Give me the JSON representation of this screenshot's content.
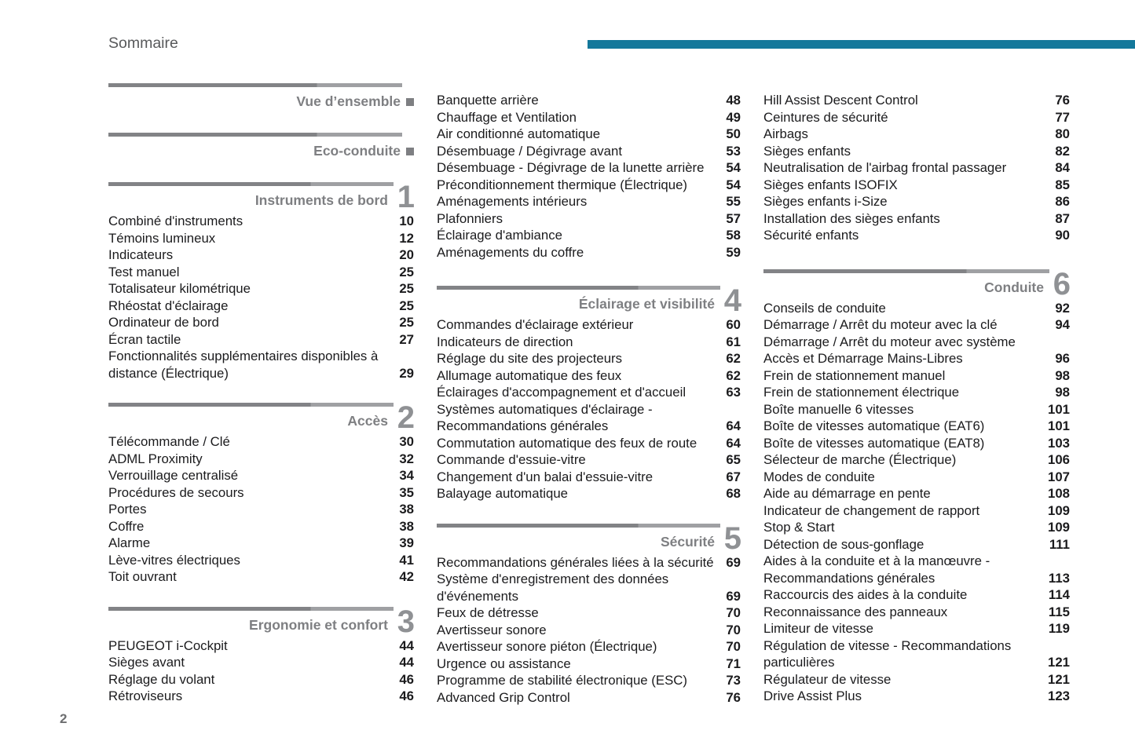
{
  "page": {
    "title": "Sommaire",
    "page_number": "2",
    "accent_color": "#14789b"
  },
  "columns": [
    {
      "blocks": [
        {
          "type": "section",
          "title": "Vue d’ensemble",
          "marker": "square",
          "entries": []
        },
        {
          "type": "section",
          "title": "Eco-conduite",
          "marker": "square",
          "entries": []
        },
        {
          "type": "section",
          "title": "Instruments de bord",
          "marker": "1",
          "entries": [
            {
              "label": "Combiné d'instruments",
              "page": "10"
            },
            {
              "label": "Témoins lumineux",
              "page": "12"
            },
            {
              "label": "Indicateurs",
              "page": "20"
            },
            {
              "label": "Test manuel",
              "page": "25"
            },
            {
              "label": "Totalisateur kilométrique",
              "page": "25"
            },
            {
              "label": "Rhéostat d'éclairage",
              "page": "25"
            },
            {
              "label": "Ordinateur de bord",
              "page": "25"
            },
            {
              "label": "Écran tactile",
              "page": "27"
            },
            {
              "label": "Fonctionnalités supplémentaires disponibles à distance (Électrique)",
              "page": "29"
            }
          ]
        },
        {
          "type": "section",
          "title": "Accès",
          "marker": "2",
          "entries": [
            {
              "label": "Télécommande / Clé",
              "page": "30"
            },
            {
              "label": "ADML Proximity",
              "page": "32"
            },
            {
              "label": "Verrouillage centralisé",
              "page": "34"
            },
            {
              "label": "Procédures de secours",
              "page": "35"
            },
            {
              "label": "Portes",
              "page": "38"
            },
            {
              "label": "Coffre",
              "page": "38"
            },
            {
              "label": "Alarme",
              "page": "39"
            },
            {
              "label": "Lève-vitres électriques",
              "page": "41"
            },
            {
              "label": "Toit ouvrant",
              "page": "42"
            }
          ]
        },
        {
          "type": "section",
          "title": "Ergonomie et confort",
          "marker": "3",
          "entries": [
            {
              "label": "PEUGEOT i-Cockpit",
              "page": "44"
            },
            {
              "label": "Sièges avant",
              "page": "44"
            },
            {
              "label": "Réglage du volant",
              "page": "46"
            },
            {
              "label": "Rétroviseurs",
              "page": "46"
            }
          ]
        }
      ]
    },
    {
      "blocks": [
        {
          "type": "list",
          "entries": [
            {
              "label": "Banquette arrière",
              "page": "48"
            },
            {
              "label": "Chauffage et Ventilation",
              "page": "49"
            },
            {
              "label": "Air conditionné automatique",
              "page": "50"
            },
            {
              "label": "Désembuage / Dégivrage avant",
              "page": "53"
            },
            {
              "label": "Désembuage - Dégivrage de la lunette arrière",
              "page": "54"
            },
            {
              "label": "Préconditionnement thermique (Électrique)",
              "page": "54"
            },
            {
              "label": "Aménagements intérieurs",
              "page": "55"
            },
            {
              "label": "Plafonniers",
              "page": "57"
            },
            {
              "label": "Éclairage d'ambiance",
              "page": "58"
            },
            {
              "label": "Aménagements du coffre",
              "page": "59"
            }
          ]
        },
        {
          "type": "section",
          "title": "Éclairage et visibilité",
          "marker": "4",
          "entries": [
            {
              "label": "Commandes d'éclairage extérieur",
              "page": "60"
            },
            {
              "label": "Indicateurs de direction",
              "page": "61"
            },
            {
              "label": "Réglage du site des projecteurs",
              "page": "62"
            },
            {
              "label": "Allumage automatique des feux",
              "page": "62"
            },
            {
              "label": "Éclairages d'accompagnement et d'accueil",
              "page": "63"
            },
            {
              "label": "Systèmes automatiques d'éclairage - Recommandations générales",
              "page": "64"
            },
            {
              "label": "Commutation automatique des feux de route",
              "page": "64"
            },
            {
              "label": "Commande d'essuie-vitre",
              "page": "65"
            },
            {
              "label": "Changement d'un balai d'essuie-vitre",
              "page": "67"
            },
            {
              "label": "Balayage automatique",
              "page": "68"
            }
          ]
        },
        {
          "type": "section",
          "title": "Sécurité",
          "marker": "5",
          "entries": [
            {
              "label": "Recommandations générales liées à la sécurité",
              "page": "69"
            },
            {
              "label": "Système d'enregistrement des données d'événements",
              "page": "69"
            },
            {
              "label": "Feux de détresse",
              "page": "70"
            },
            {
              "label": "Avertisseur sonore",
              "page": "70"
            },
            {
              "label": "Avertisseur sonore piéton (Électrique)",
              "page": "70"
            },
            {
              "label": "Urgence ou assistance",
              "page": "71"
            },
            {
              "label": "Programme de stabilité électronique (ESC)",
              "page": "73"
            },
            {
              "label": "Advanced Grip Control",
              "page": "76"
            }
          ]
        }
      ]
    },
    {
      "blocks": [
        {
          "type": "list",
          "entries": [
            {
              "label": "Hill Assist Descent Control",
              "page": "76"
            },
            {
              "label": "Ceintures de sécurité",
              "page": "77"
            },
            {
              "label": "Airbags",
              "page": "80"
            },
            {
              "label": "Sièges enfants",
              "page": "82"
            },
            {
              "label": "Neutralisation de l'airbag frontal passager",
              "page": "84"
            },
            {
              "label": "Sièges enfants ISOFIX",
              "page": "85"
            },
            {
              "label": "Sièges enfants i-Size",
              "page": "86"
            },
            {
              "label": "Installation des sièges enfants",
              "page": "87"
            },
            {
              "label": "Sécurité enfants",
              "page": "90"
            }
          ]
        },
        {
          "type": "section",
          "title": "Conduite",
          "marker": "6",
          "entries": [
            {
              "label": "Conseils de conduite",
              "page": "92"
            },
            {
              "label": "Démarrage / Arrêt du moteur avec la clé",
              "page": "94"
            },
            {
              "label": "Démarrage / Arrêt du moteur avec système Accès et Démarrage Mains-Libres",
              "page": "96"
            },
            {
              "label": "Frein de stationnement manuel",
              "page": "98"
            },
            {
              "label": "Frein de stationnement électrique",
              "page": "98"
            },
            {
              "label": "Boîte manuelle 6 vitesses",
              "page": "101"
            },
            {
              "label": "Boîte de vitesses automatique (EAT6)",
              "page": "101"
            },
            {
              "label": "Boîte de vitesses automatique (EAT8)",
              "page": "103"
            },
            {
              "label": "Sélecteur de marche (Électrique)",
              "page": "106"
            },
            {
              "label": "Modes de conduite",
              "page": "107"
            },
            {
              "label": "Aide au démarrage en pente",
              "page": "108"
            },
            {
              "label": "Indicateur de changement de rapport",
              "page": "109"
            },
            {
              "label": "Stop & Start",
              "page": "109"
            },
            {
              "label": "Détection de sous-gonflage",
              "page": "111"
            },
            {
              "label": "Aides à la conduite et à la manœuvre - Recommandations générales",
              "page": "113"
            },
            {
              "label": "Raccourcis des aides à la conduite",
              "page": "114"
            },
            {
              "label": "Reconnaissance des panneaux",
              "page": "115"
            },
            {
              "label": "Limiteur de vitesse",
              "page": "119"
            },
            {
              "label": "Régulation de vitesse - Recommandations particulières",
              "page": "121"
            },
            {
              "label": "Régulateur de vitesse",
              "page": "121"
            },
            {
              "label": "Drive Assist Plus",
              "page": "123"
            }
          ]
        }
      ]
    }
  ]
}
